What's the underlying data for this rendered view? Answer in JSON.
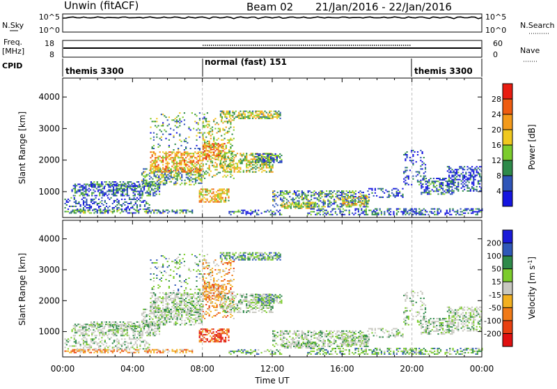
{
  "header": {
    "radar": "Unwin (fitACF)",
    "beam": "Beam 02",
    "date_range": "21/Jan/2016 - 22/Jan/2016"
  },
  "status_panels": {
    "nsky_label": "N.Sky",
    "nsky_ticks": [
      "10^5",
      "10^0"
    ],
    "nsearch_label": "N.Search",
    "nsearch_ticks": [
      "10^5",
      "10^0"
    ],
    "freq_label": "Freq.",
    "freq_unit": "[MHz]",
    "freq_ticks": [
      "18",
      "8"
    ],
    "nave_label": "Nave",
    "nave_ticks": [
      "60",
      "0"
    ],
    "cpid_label": "CPID",
    "cpid_segments": [
      {
        "label": "themis 3300",
        "start_h": 0,
        "end_h": 8
      },
      {
        "label": "normal (fast) 151",
        "start_h": 8,
        "end_h": 20
      },
      {
        "label": "themis 3300",
        "start_h": 20,
        "end_h": 24
      }
    ]
  },
  "chart_data": [
    {
      "type": "heatmap",
      "name": "Power",
      "xlabel": "Time UT",
      "ylabel": "Slant Range [km]",
      "x_ticks": [
        "00:00",
        "04:00",
        "08:00",
        "12:00",
        "16:00",
        "20:00",
        "00:00"
      ],
      "x_range_h": [
        0,
        24
      ],
      "y_ticks": [
        1000,
        2000,
        3000,
        4000
      ],
      "y_range": [
        180,
        4600
      ],
      "colorbar_label": "Power [dB]",
      "colorbar_ticks": [
        4,
        8,
        12,
        16,
        20,
        24,
        28
      ],
      "colorbar_range": [
        0,
        32
      ],
      "colorbar_colors": [
        "#1515e0",
        "#2f55b8",
        "#2e8a4a",
        "#7ccc2c",
        "#f0c81e",
        "#f49a1a",
        "#ee5c10",
        "#e81c10"
      ]
    },
    {
      "type": "heatmap",
      "name": "Velocity",
      "xlabel": "Time UT",
      "ylabel": "Slant Range [km]",
      "x_ticks": [
        "00:00",
        "04:00",
        "08:00",
        "12:00",
        "16:00",
        "20:00",
        "00:00"
      ],
      "x_range_h": [
        0,
        24
      ],
      "y_ticks": [
        1000,
        2000,
        3000,
        4000
      ],
      "y_range": [
        180,
        4600
      ],
      "colorbar_label": "Velocity [m s^-1]",
      "colorbar_ticks": [
        "200",
        "100",
        "50",
        "15",
        "-15",
        "-50",
        "-100",
        "-200"
      ],
      "colorbar_colors": [
        "#1a1ad8",
        "#2f58b8",
        "#2e8a4a",
        "#7ccc2c",
        "#c8c8c0",
        "#f2b020",
        "#f07a18",
        "#e84010",
        "#e01010"
      ]
    }
  ]
}
